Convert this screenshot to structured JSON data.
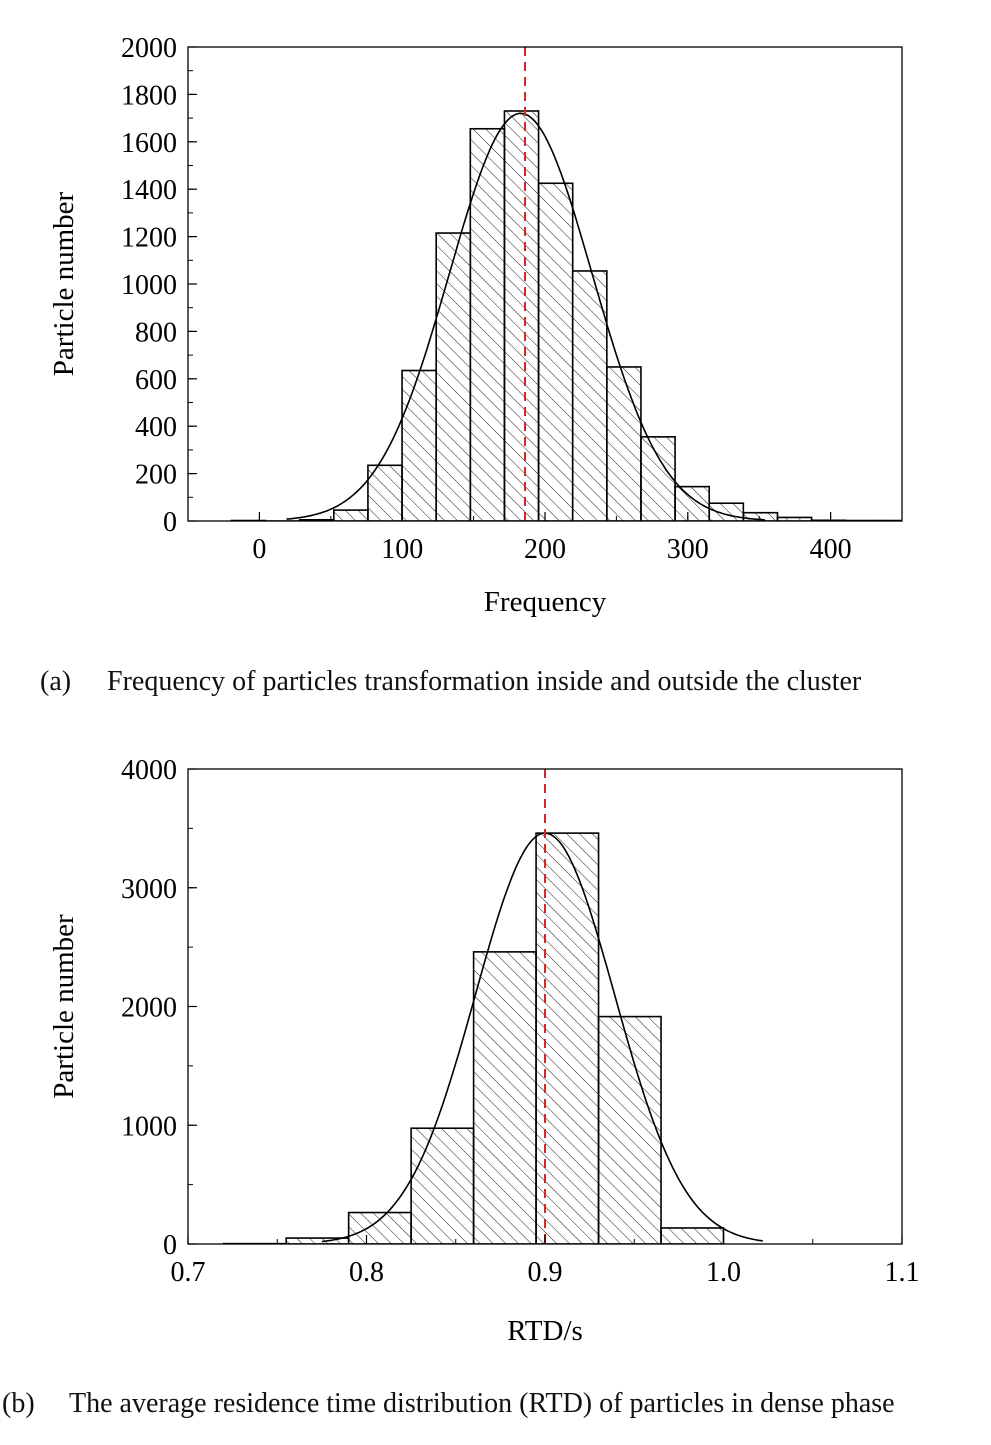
{
  "chart_data": [
    {
      "type": "bar",
      "subtype": "histogram",
      "xlabel": "Frequency",
      "ylabel": "Particle number",
      "xlim": [
        -50,
        450
      ],
      "ylim": [
        0,
        2000
      ],
      "xticks": [
        0,
        100,
        200,
        300,
        400
      ],
      "yticks": [
        0,
        200,
        400,
        600,
        800,
        1000,
        1200,
        1400,
        1600,
        1800,
        2000
      ],
      "xtick_labels": [
        "0",
        "100",
        "200",
        "300",
        "400"
      ],
      "ytick_labels": [
        "0",
        "200",
        "400",
        "600",
        "800",
        "1000",
        "1200",
        "1400",
        "1600",
        "1800",
        "2000"
      ],
      "x_minor_step": 50,
      "y_minor_step": 100,
      "bin_start": -19.6,
      "bin_width": 23.9,
      "values": [
        2,
        0,
        5,
        46,
        235,
        635,
        1215,
        1655,
        1730,
        1425,
        1055,
        650,
        355,
        145,
        75,
        35,
        15,
        3,
        2,
        2
      ],
      "fit": {
        "type": "normal",
        "mean": 183,
        "sd": 50,
        "peak": 1720,
        "range": [
          19,
          354
        ]
      },
      "mean_line": {
        "x": 186,
        "color": "#d62728",
        "style": "dashed"
      },
      "caption_label": "(a)",
      "caption": "Frequency of particles transformation inside and outside the cluster"
    },
    {
      "type": "bar",
      "subtype": "histogram",
      "xlabel": "RTD/s",
      "ylabel": "Particle number",
      "xlim": [
        0.7,
        1.1
      ],
      "ylim": [
        0,
        4000
      ],
      "xticks": [
        0.7,
        0.8,
        0.9,
        1.0,
        1.1
      ],
      "yticks": [
        0,
        1000,
        2000,
        3000,
        4000
      ],
      "xtick_labels": [
        "0.7",
        "0.8",
        "0.9",
        "1.0",
        "1.1"
      ],
      "ytick_labels": [
        "0",
        "1000",
        "2000",
        "3000",
        "4000"
      ],
      "x_minor_step": 0.05,
      "y_minor_step": 500,
      "bin_start": 0.72,
      "bin_width": 0.035,
      "values": [
        3,
        50,
        265,
        975,
        2460,
        3460,
        1915,
        135
      ],
      "fit": {
        "type": "normal",
        "mean": 0.9,
        "sd": 0.039,
        "peak": 3460,
        "range": [
          0.775,
          1.022
        ]
      },
      "mean_line": {
        "x": 0.9,
        "color": "#d62728",
        "style": "dashed"
      },
      "caption_label": "(b)",
      "caption": "The average residence time distribution (RTD) of particles in dense phase"
    }
  ]
}
